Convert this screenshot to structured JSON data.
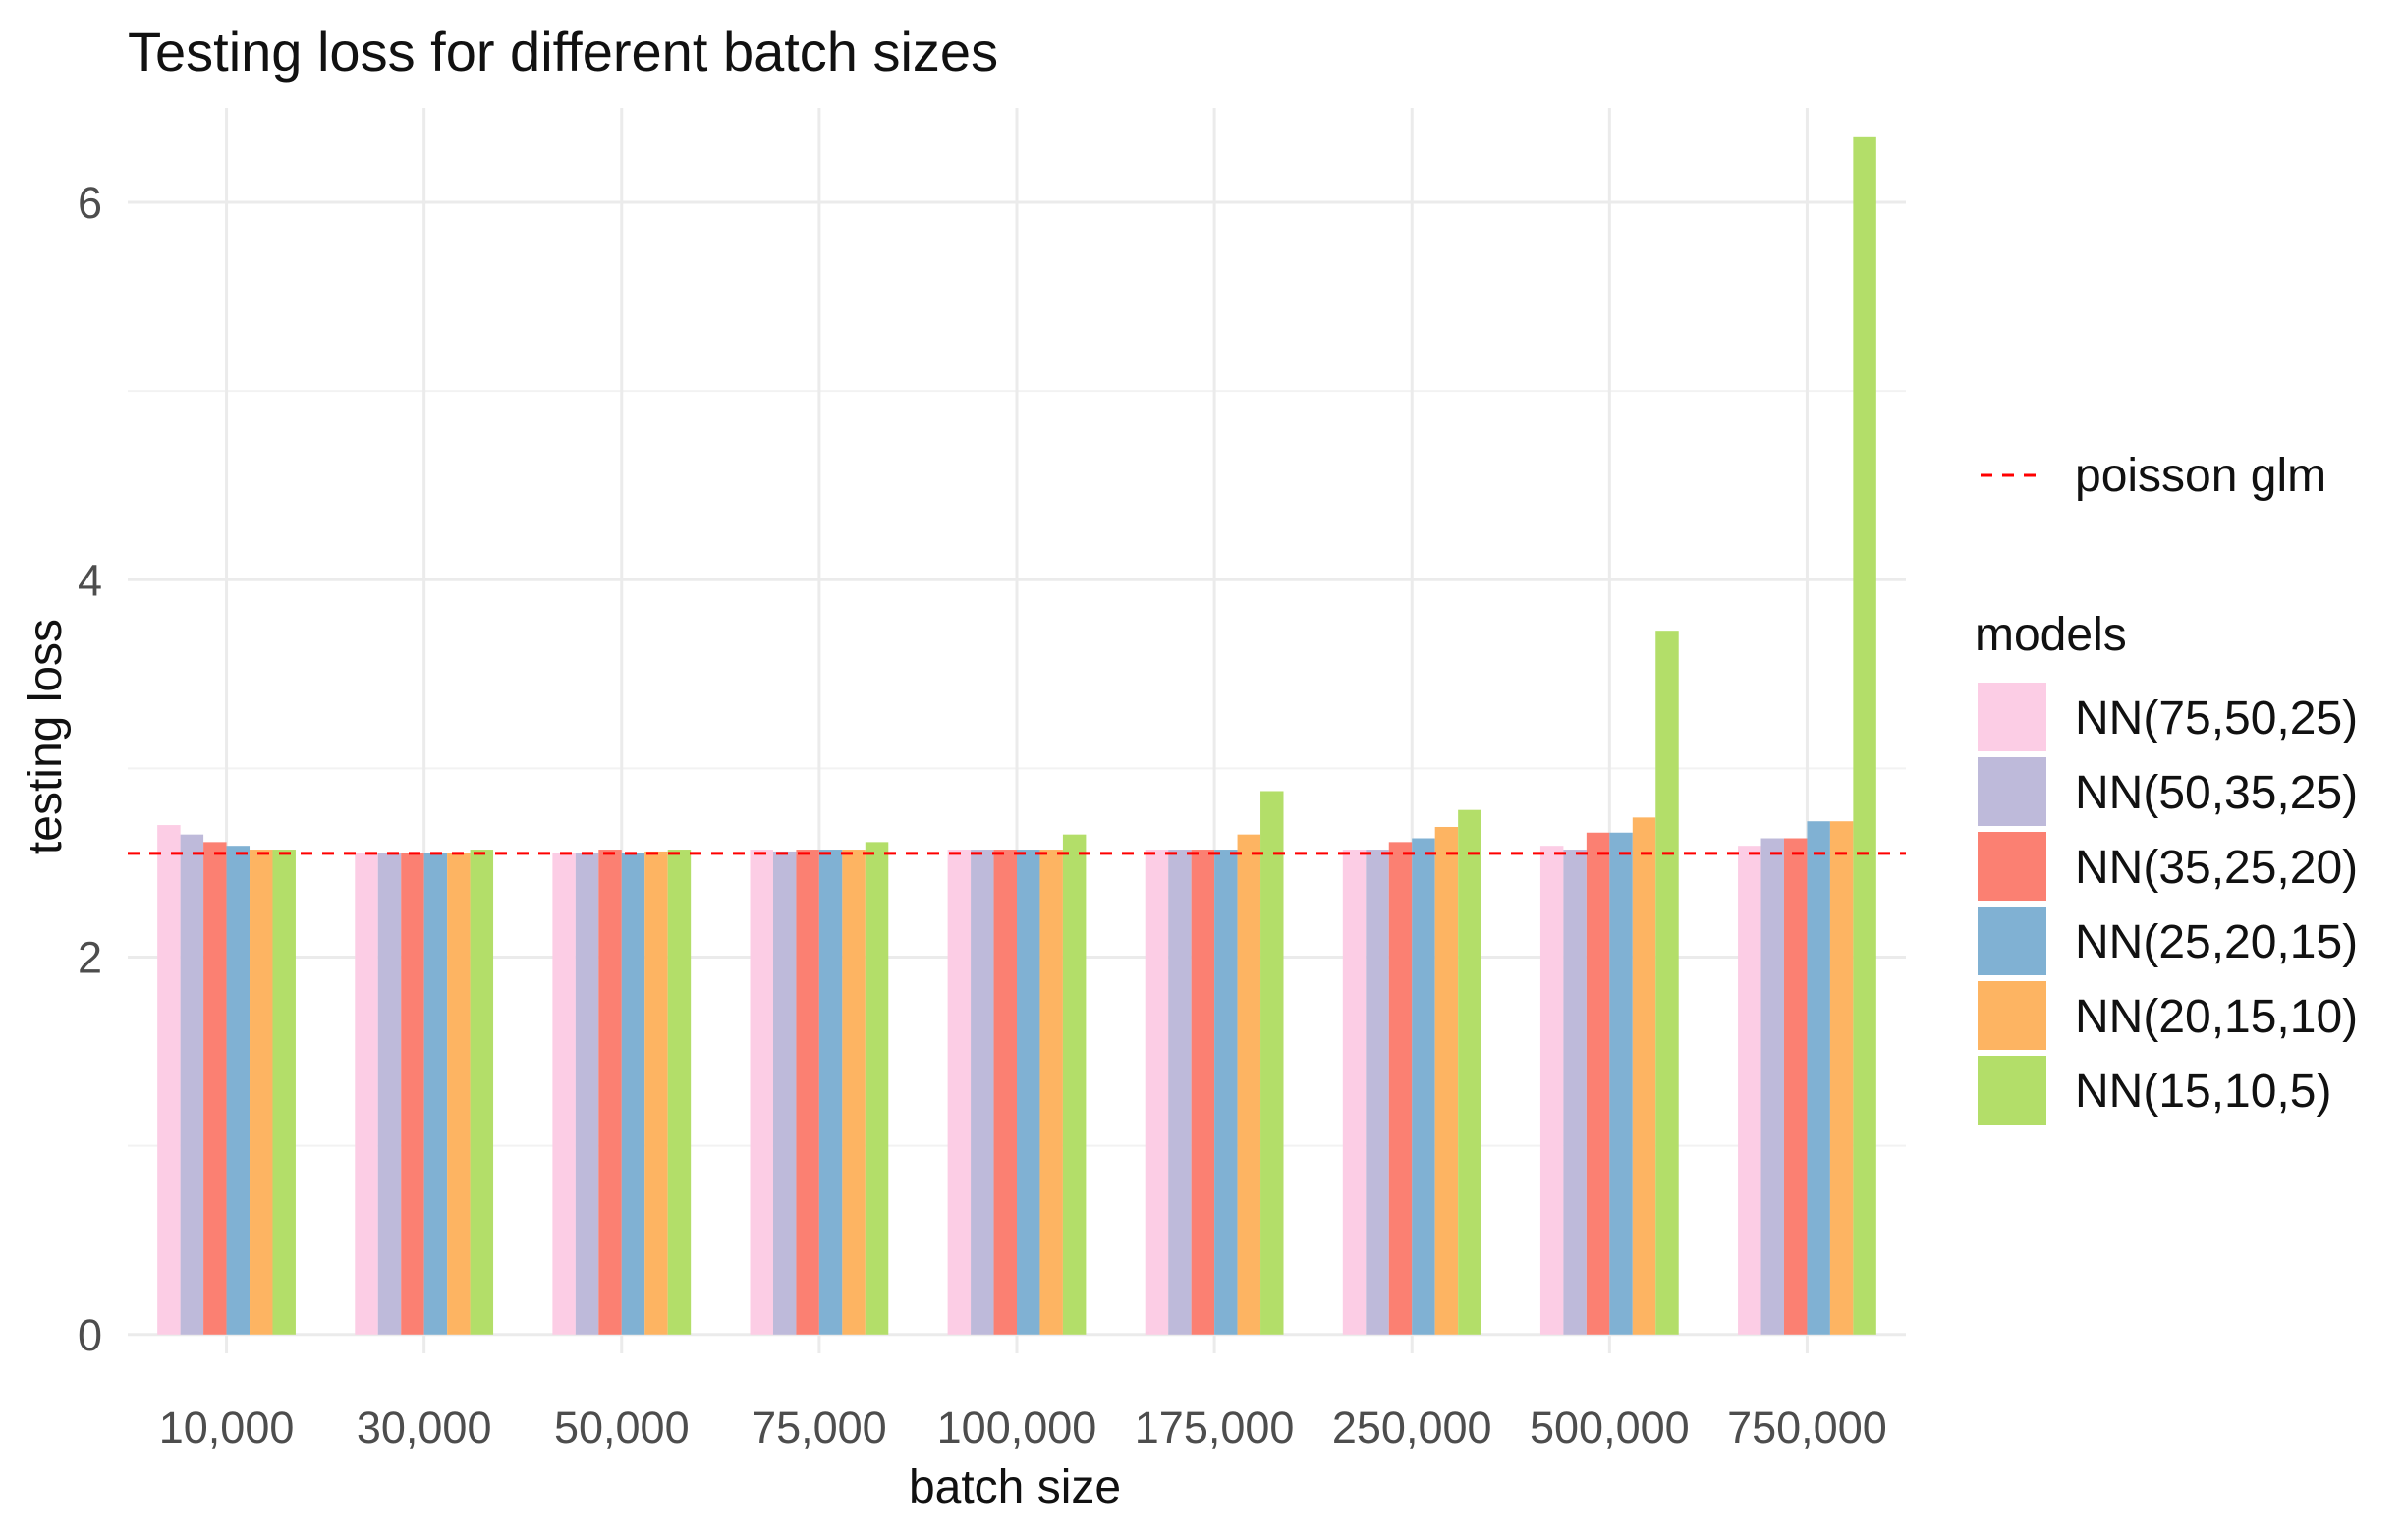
{
  "chart_data": {
    "type": "bar",
    "title": "Testing loss for different batch sizes",
    "xlabel": "batch size",
    "ylabel": "testing loss",
    "categories": [
      "10,000",
      "30,000",
      "50,000",
      "75,000",
      "100,000",
      "175,000",
      "250,000",
      "500,000",
      "750,000"
    ],
    "ylim": [
      -0.1,
      6.5
    ],
    "yticks": [
      0,
      2,
      4,
      6
    ],
    "yticklabels": [
      "0",
      "2",
      "4",
      "6"
    ],
    "grid": true,
    "legend_position": "right",
    "legend_title": "models",
    "series": [
      {
        "name": "NN(75,50,25)",
        "color": "#fccde5",
        "values": [
          2.7,
          2.55,
          2.55,
          2.57,
          2.57,
          2.57,
          2.57,
          2.59,
          2.59
        ]
      },
      {
        "name": "NN(50,35,25)",
        "color": "#bebada",
        "values": [
          2.65,
          2.55,
          2.55,
          2.56,
          2.57,
          2.57,
          2.57,
          2.57,
          2.63
        ]
      },
      {
        "name": "NN(35,25,20)",
        "color": "#fb8072",
        "values": [
          2.61,
          2.55,
          2.57,
          2.57,
          2.57,
          2.57,
          2.61,
          2.66,
          2.63
        ]
      },
      {
        "name": "NN(25,20,15)",
        "color": "#80b1d3",
        "values": [
          2.59,
          2.55,
          2.55,
          2.57,
          2.57,
          2.57,
          2.63,
          2.66,
          2.72
        ]
      },
      {
        "name": "NN(20,15,10)",
        "color": "#fdb462",
        "values": [
          2.57,
          2.55,
          2.56,
          2.57,
          2.57,
          2.65,
          2.69,
          2.74,
          2.72
        ]
      },
      {
        "name": "NN(15,10,5)",
        "color": "#b3de69",
        "values": [
          2.57,
          2.57,
          2.57,
          2.61,
          2.65,
          2.88,
          2.78,
          3.73,
          6.35
        ]
      }
    ],
    "reference_line": {
      "name": "poisson glm",
      "value": 2.55,
      "color": "#ff0000",
      "style": "dashed"
    }
  }
}
